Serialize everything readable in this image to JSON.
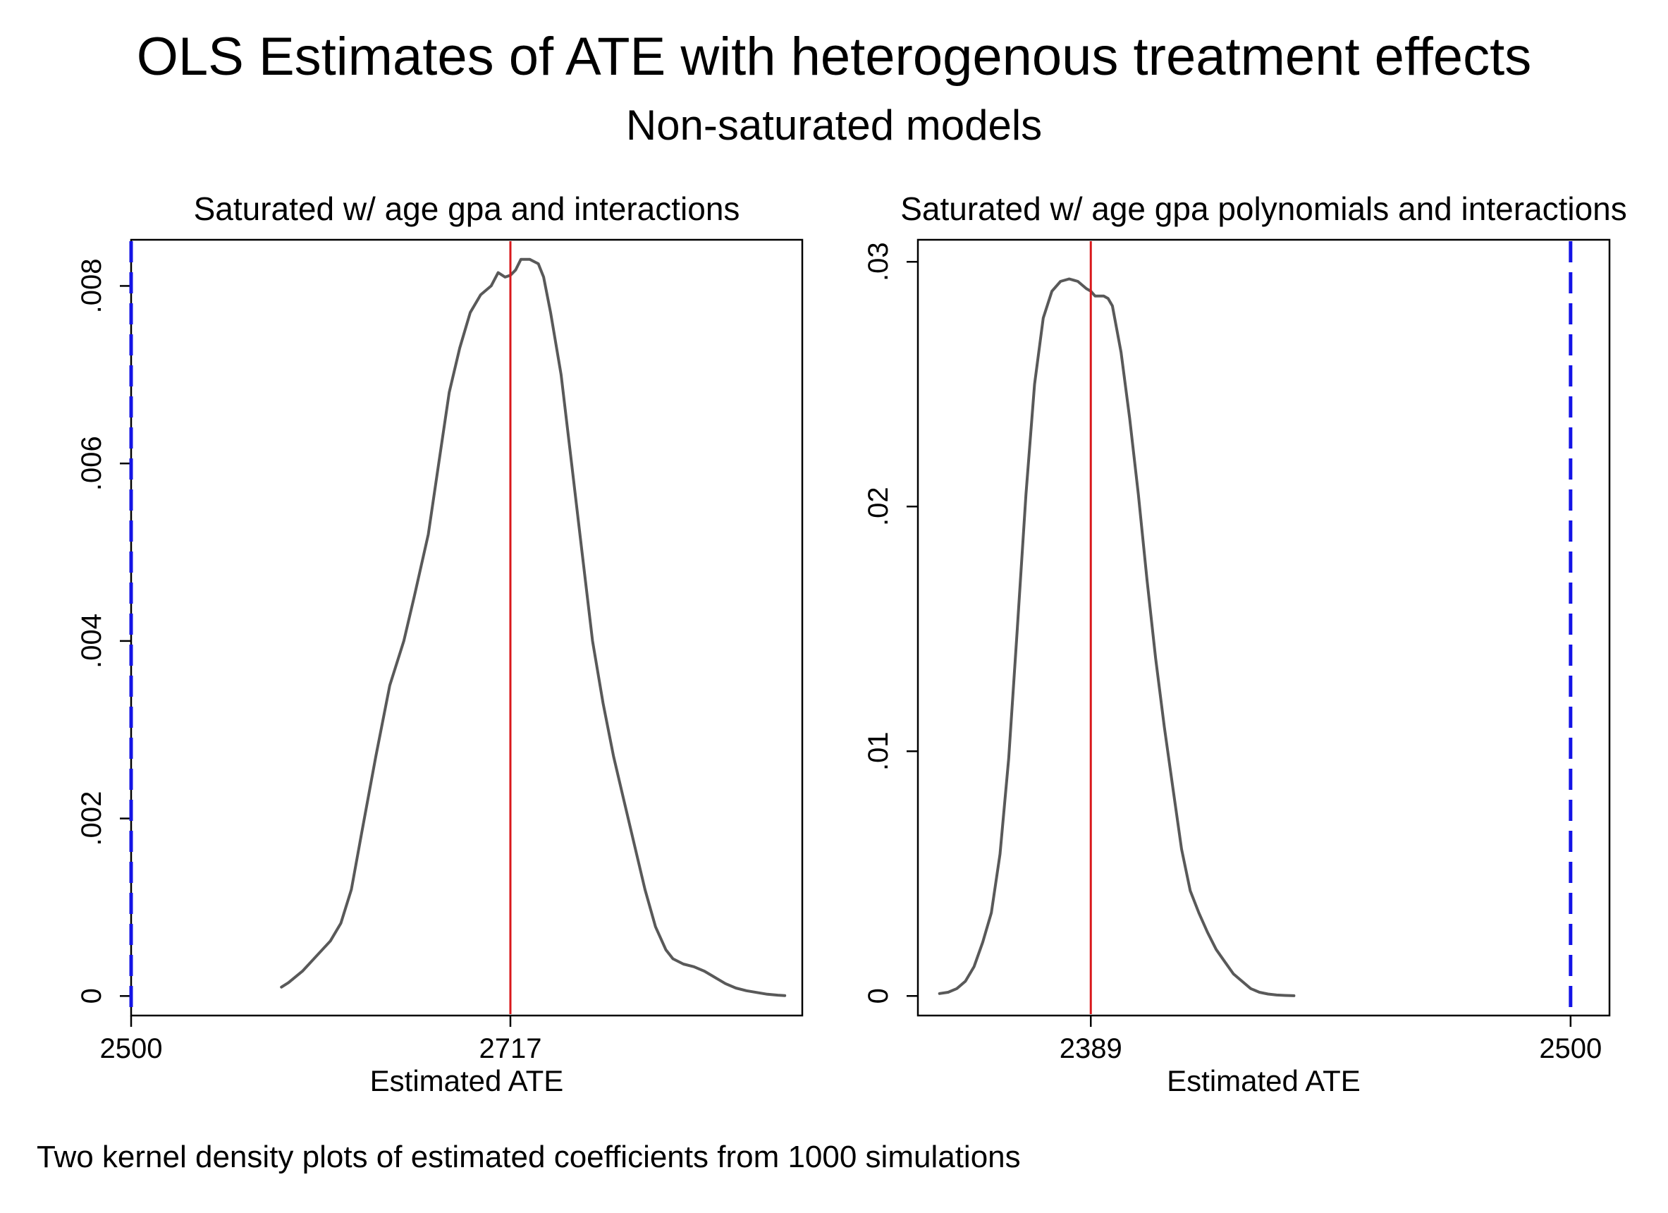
{
  "title": "OLS Estimates of ATE with heterogenous treatment effects",
  "subtitle": "Non-saturated models",
  "note": "Two kernel density plots of estimated coefficients from 1000 simulations",
  "colors": {
    "density": "#595959",
    "estimate_line": "#d9191c",
    "true_ate_line": "#1414e6",
    "frame": "#000000"
  },
  "chart_data": [
    {
      "type": "line",
      "title": "Saturated w/ age gpa and interactions",
      "xlabel": "Estimated ATE",
      "ylabel": "",
      "xlim": [
        2500,
        2884
      ],
      "ylim": [
        -0.00022,
        0.00852
      ],
      "x_ticks": [
        {
          "value": 2500,
          "label": "2500"
        },
        {
          "value": 2717,
          "label": "2717"
        }
      ],
      "y_ticks": [
        {
          "value": 0,
          "label": "0"
        },
        {
          "value": 0.002,
          "label": ".002"
        },
        {
          "value": 0.004,
          "label": ".004"
        },
        {
          "value": 0.006,
          "label": ".006"
        },
        {
          "value": 0.008,
          "label": ".008"
        }
      ],
      "grid": false,
      "reference_lines": [
        {
          "value": 2717,
          "style": "solid",
          "color": "#d9191c"
        },
        {
          "value": 2500,
          "style": "dashed",
          "color": "#1414e6"
        }
      ],
      "series": [
        {
          "x": [
            2586,
            2590,
            2598,
            2606,
            2614,
            2620,
            2626,
            2632,
            2640,
            2648,
            2656,
            2662,
            2670,
            2676,
            2682,
            2688,
            2694,
            2700,
            2706,
            2710,
            2714,
            2717,
            2720,
            2723,
            2728,
            2733,
            2736,
            2740,
            2746,
            2752,
            2758,
            2764,
            2770,
            2776,
            2782,
            2788,
            2794,
            2800,
            2806,
            2810,
            2816,
            2822,
            2828,
            2834,
            2840,
            2846,
            2852,
            2858,
            2864,
            2870,
            2874
          ],
          "values": [
            0.0001,
            0.00015,
            0.00028,
            0.00045,
            0.00062,
            0.00082,
            0.0012,
            0.00185,
            0.0027,
            0.0035,
            0.004,
            0.0045,
            0.0052,
            0.006,
            0.0068,
            0.0073,
            0.0077,
            0.0079,
            0.008,
            0.00815,
            0.0081,
            0.00812,
            0.00818,
            0.0083,
            0.0083,
            0.00825,
            0.0081,
            0.0077,
            0.007,
            0.006,
            0.005,
            0.004,
            0.0033,
            0.0027,
            0.0022,
            0.0017,
            0.0012,
            0.00078,
            0.00052,
            0.00042,
            0.00036,
            0.00033,
            0.00028,
            0.00021,
            0.00014,
            9e-05,
            6e-05,
            4e-05,
            2e-05,
            1e-05,
            5e-06
          ]
        }
      ]
    },
    {
      "type": "line",
      "title": "Saturated w/ age gpa polynomials and interactions",
      "xlabel": "Estimated ATE",
      "ylabel": "",
      "xlim": [
        2349,
        2509
      ],
      "ylim": [
        -0.0008,
        0.0309
      ],
      "x_ticks": [
        {
          "value": 2389,
          "label": "2389"
        },
        {
          "value": 2500,
          "label": "2500"
        }
      ],
      "y_ticks": [
        {
          "value": 0,
          "label": "0"
        },
        {
          "value": 0.01,
          "label": ".01"
        },
        {
          "value": 0.02,
          "label": ".02"
        },
        {
          "value": 0.03,
          "label": ".03"
        }
      ],
      "grid": false,
      "reference_lines": [
        {
          "value": 2389,
          "style": "solid",
          "color": "#d9191c"
        },
        {
          "value": 2500,
          "style": "dashed",
          "color": "#1414e6"
        }
      ],
      "series": [
        {
          "x": [
            2354,
            2356,
            2358,
            2360,
            2362,
            2364,
            2366,
            2368,
            2370,
            2372,
            2374,
            2376,
            2378,
            2380,
            2382,
            2384,
            2386,
            2388,
            2389,
            2390,
            2392,
            2393,
            2394,
            2396,
            2398,
            2400,
            2402,
            2404,
            2406,
            2408,
            2410,
            2412,
            2414,
            2416,
            2418,
            2420,
            2422,
            2424,
            2426,
            2428,
            2430,
            2432,
            2434,
            2436
          ],
          "values": [
            0.0001,
            0.00015,
            0.0003,
            0.0006,
            0.0012,
            0.0022,
            0.0034,
            0.0058,
            0.0097,
            0.015,
            0.0205,
            0.025,
            0.0277,
            0.0288,
            0.0292,
            0.0293,
            0.0292,
            0.0289,
            0.0288,
            0.0286,
            0.0286,
            0.0285,
            0.0282,
            0.0263,
            0.0236,
            0.0205,
            0.017,
            0.0138,
            0.011,
            0.0085,
            0.006,
            0.0043,
            0.0034,
            0.0026,
            0.0019,
            0.0014,
            0.0009,
            0.0006,
            0.0003,
            0.00015,
            8e-05,
            4e-05,
            2e-05,
            1e-05
          ]
        }
      ]
    }
  ]
}
